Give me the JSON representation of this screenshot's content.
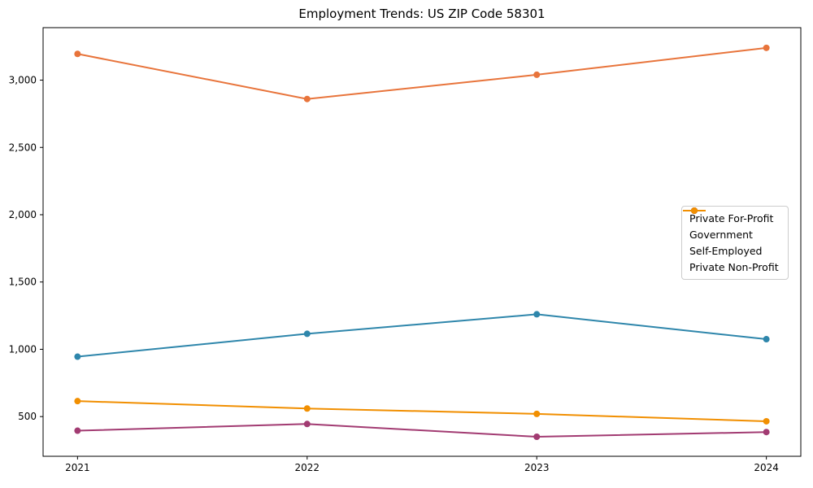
{
  "chart_data": {
    "type": "line",
    "title": "Employment Trends: US ZIP Code 58301",
    "categories": [
      "2021",
      "2022",
      "2023",
      "2024"
    ],
    "series": [
      {
        "name": "Private For-Profit",
        "color": "#E8743B",
        "values": [
          3195,
          2860,
          3040,
          3240
        ]
      },
      {
        "name": "Government",
        "color": "#2E86AB",
        "values": [
          945,
          1115,
          1260,
          1075
        ]
      },
      {
        "name": "Self-Employed",
        "color": "#A23B72",
        "values": [
          395,
          445,
          350,
          385
        ]
      },
      {
        "name": "Private Non-Profit",
        "color": "#F18F01",
        "values": [
          615,
          560,
          520,
          465
        ]
      }
    ],
    "yticks": [
      500,
      1000,
      1500,
      2000,
      2500,
      3000
    ],
    "ytick_labels": [
      "500",
      "1,000",
      "1,500",
      "2,000",
      "2,500",
      "3,000"
    ],
    "ylim": [
      205,
      3390
    ],
    "grid": false,
    "legend_position": "center-right",
    "axis_color": "#000000",
    "background_color": "#ffffff",
    "line_width": 2,
    "marker": "circle",
    "marker_radius": 4
  }
}
